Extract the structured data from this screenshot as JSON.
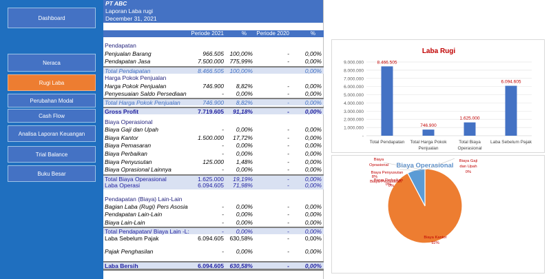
{
  "sidebar": {
    "items": [
      {
        "label": "Dashboard",
        "active": false
      },
      {
        "label": "Neraca",
        "active": false
      },
      {
        "label": "Rugi Laba",
        "active": true
      },
      {
        "label": "Perubahan Modal",
        "active": false
      },
      {
        "label": "Cash Flow",
        "active": false
      },
      {
        "label": "Analisa Laporan Keuangan",
        "active": false
      },
      {
        "label": "Trial Balance",
        "active": false
      },
      {
        "label": "Buku Besar",
        "active": false
      }
    ]
  },
  "report": {
    "company": "PT ABC",
    "title": "Laporan Laba rugi",
    "date": "December 31, 2021",
    "columns": {
      "p2021": "Periode 2021",
      "pct1": "%",
      "p2020": "Periode 2020",
      "pct2": "%"
    },
    "rows": [
      {
        "label": "Pendapatan",
        "type": "section"
      },
      {
        "label": "Penjualan Barang",
        "type": "item",
        "v1": "966.505",
        "p1": "100,00%",
        "v2": "-",
        "p2": "0,00%"
      },
      {
        "label": "Pendapatan Jasa",
        "type": "item",
        "v1": "7.500.000",
        "p1": "775,99%",
        "v2": "-",
        "p2": "0,00%"
      },
      {
        "label": "Total Pendapatan",
        "type": "total-light",
        "v1": "8.466.505",
        "p1": "100,00%",
        "v2": "",
        "p2": "0,00%"
      },
      {
        "label": "Harga Pokok Penjualan",
        "type": "section"
      },
      {
        "label": "Harga Pokok Penjualan",
        "type": "item",
        "v1": "746.900",
        "p1": "8,82%",
        "v2": "-",
        "p2": "0,00%"
      },
      {
        "label": "Penyesuaian Saldo Persediaan",
        "type": "item",
        "v1": "-",
        "p1": "0,00%",
        "v2": "-",
        "p2": "0,00%"
      },
      {
        "label": "Total Harga Pokok Penjualan",
        "type": "total-light",
        "v1": "746.900",
        "p1": "8,82%",
        "v2": "-",
        "p2": "0,00%"
      },
      {
        "label": "Gross Profit",
        "type": "total-dark-bold",
        "v1": "7.719.605",
        "p1": "91,18%",
        "v2": "-",
        "p2": "0,00%"
      },
      {
        "label": "Biaya Operasional",
        "type": "section"
      },
      {
        "label": "Biaya Gaji dan Upah",
        "type": "item",
        "v1": "-",
        "p1": "0,00%",
        "v2": "-",
        "p2": "0,00%"
      },
      {
        "label": "Biaya Kantor",
        "type": "item",
        "v1": "1.500.000",
        "p1": "17,72%",
        "v2": "-",
        "p2": "0,00%"
      },
      {
        "label": "Biaya Pemasaran",
        "type": "item",
        "v1": "-",
        "p1": "0,00%",
        "v2": "-",
        "p2": "0,00%"
      },
      {
        "label": "Biaya Perbaikan",
        "type": "item",
        "v1": "-",
        "p1": "0,00%",
        "v2": "-",
        "p2": "0,00%"
      },
      {
        "label": "Biaya Penyusutan",
        "type": "item",
        "v1": "125.000",
        "p1": "1,48%",
        "v2": "-",
        "p2": "0,00%"
      },
      {
        "label": "Biaya Oprasional Lainnya",
        "type": "item",
        "v1": "-",
        "p1": "0,00%",
        "v2": "-",
        "p2": "0,00%"
      },
      {
        "label": "Total Biaya Operasional",
        "type": "total-dark",
        "v1": "1.625.000",
        "p1": "19,19%",
        "v2": "-",
        "p2": "0,00%"
      },
      {
        "label": "Laba Operasi",
        "type": "total-dark-nb",
        "v1": "6.094.605",
        "p1": "71,98%",
        "v2": "-",
        "p2": "0,00%"
      },
      {
        "label": "Pendapatan (Biaya) Lain-Lain",
        "type": "section"
      },
      {
        "label": "Bagian Laba (Rugi) Pers Asosia",
        "type": "item",
        "v1": "-",
        "p1": "0,00%",
        "v2": "-",
        "p2": "0,00%"
      },
      {
        "label": "Pendapatan Lain-Lain",
        "type": "item",
        "v1": "-",
        "p1": "0,00%",
        "v2": "-",
        "p2": "0,00%"
      },
      {
        "label": "Biaya Lain-Lain",
        "type": "item",
        "v1": "-",
        "p1": "0,00%",
        "v2": "-",
        "p2": "0,00%"
      },
      {
        "label": "Total Pendapatan/ Biaya Lain -L:",
        "type": "total-dark",
        "v1": "-",
        "p1": "0,00%",
        "v2": "-",
        "p2": "0,00%"
      },
      {
        "label": "Laba Sebelum Pajak",
        "type": "plain",
        "v1": "6.094.605",
        "p1": "630,58%",
        "v2": "-",
        "p2": "0,00%"
      },
      {
        "label": "Pajak Penghasilan",
        "type": "item",
        "v1": "-",
        "p1": "0,00%",
        "v2": "-",
        "p2": "0,00%"
      },
      {
        "label": "Laba Bersih",
        "type": "total-dark-bold-full",
        "v1": "6.094.605",
        "p1": "630,58%",
        "v2": "-",
        "p2": "0,00%"
      }
    ]
  },
  "chart_data": [
    {
      "type": "bar",
      "title": "Laba Rugi",
      "categories": [
        "Total Pendapatan",
        "Total Harga Pokok Penjualan",
        "Total Biaya Operasional",
        "Laba Sebelum Pajak"
      ],
      "category_lines": [
        [
          "Total Pendapatan"
        ],
        [
          "Total Harga Pokok",
          "Penjualan"
        ],
        [
          "Total Biaya",
          "Operasional"
        ],
        [
          "Laba Sebelum Pajak"
        ]
      ],
      "values": [
        8466505,
        746900,
        1625000,
        6094605
      ],
      "data_labels": [
        "8.466.505",
        "746.900",
        "1.625.000",
        "6.094.605"
      ],
      "yticks": [
        "-",
        "1.000.000",
        "2.000.000",
        "3.000.000",
        "4.000.000",
        "5.000.000",
        "6.000.000",
        "7.000.000",
        "8.000.000",
        "9.000.000"
      ],
      "ylim": [
        0,
        9000000
      ],
      "grid": true,
      "bar_color": "#4472c4",
      "label_color": "#c00000",
      "title_color": "#c00000"
    },
    {
      "type": "pie",
      "title": "Biaya Operasional",
      "title_color": "#5b8fc9",
      "slices": [
        {
          "label": "Biaya Gaji dan Upah",
          "value": 0,
          "pct_label": "0%"
        },
        {
          "label": "Biaya Kantor",
          "value": 1500000,
          "pct_label": "92%",
          "color": "#ed7d31"
        },
        {
          "label": "Biaya Pemasaran",
          "value": 0,
          "pct_label": "0%"
        },
        {
          "label": "Biaya Perbaikan",
          "value": 0,
          "pct_label": "0%"
        },
        {
          "label": "Biaya Penyusutan",
          "value": 125000,
          "pct_label": "8%",
          "color": "#5b9bd5"
        },
        {
          "label": "Biaya Oprasional Lainnya",
          "value": 0,
          "pct_label": "0%"
        }
      ],
      "label_color": "#c00000"
    }
  ]
}
